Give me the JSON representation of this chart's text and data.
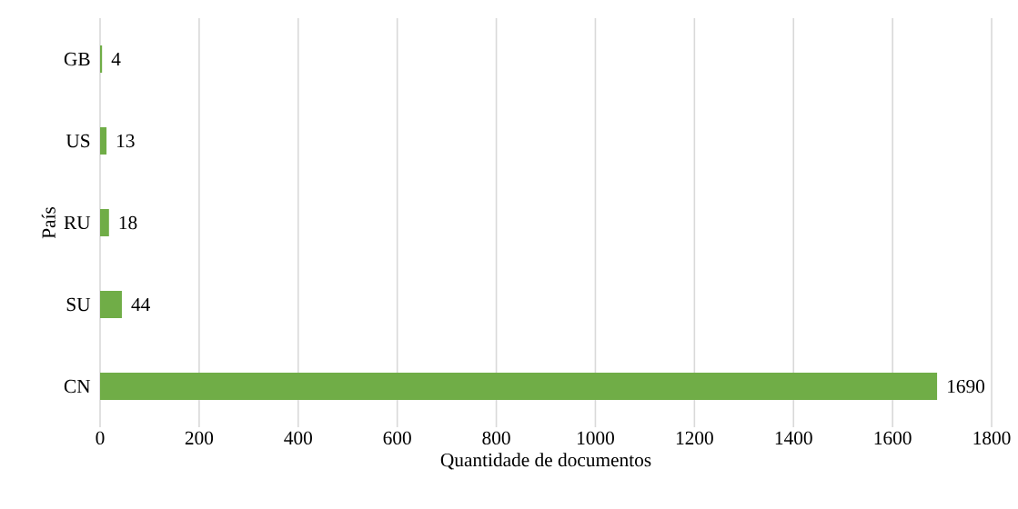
{
  "chart_data": {
    "type": "bar",
    "orientation": "horizontal",
    "xlabel": "Quantidade de documentos",
    "ylabel": "País",
    "categories": [
      "GB",
      "US",
      "RU",
      "SU",
      "CN"
    ],
    "values": [
      4,
      13,
      18,
      44,
      1690
    ],
    "color": "#70ad47",
    "xlim": [
      0,
      1800
    ],
    "xticks": [
      0,
      200,
      400,
      600,
      800,
      1000,
      1200,
      1400,
      1600,
      1800
    ],
    "grid": "x",
    "data_labels": true
  }
}
